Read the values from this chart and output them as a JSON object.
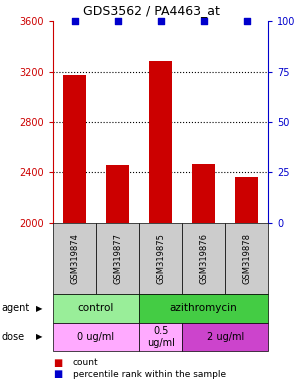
{
  "title": "GDS3562 / PA4463_at",
  "samples": [
    "GSM319874",
    "GSM319877",
    "GSM319875",
    "GSM319876",
    "GSM319878"
  ],
  "counts": [
    3170,
    2460,
    3280,
    2470,
    2360
  ],
  "percentiles": [
    100,
    100,
    100,
    100,
    100
  ],
  "ylim_left": [
    2000,
    3600
  ],
  "ylim_right": [
    0,
    100
  ],
  "yticks_left": [
    2000,
    2400,
    2800,
    3200,
    3600
  ],
  "yticks_right": [
    0,
    25,
    50,
    75,
    100
  ],
  "bar_color": "#cc0000",
  "dot_color": "#0000cc",
  "agent_groups": [
    {
      "label": "control",
      "start": 0,
      "end": 2,
      "color": "#99ee99"
    },
    {
      "label": "azithromycin",
      "start": 2,
      "end": 5,
      "color": "#44cc44"
    }
  ],
  "dose_groups": [
    {
      "label": "0 ug/ml",
      "start": 0,
      "end": 2,
      "color": "#ffaaff"
    },
    {
      "label": "0.5\nug/ml",
      "start": 2,
      "end": 3,
      "color": "#ffaaff"
    },
    {
      "label": "2 ug/ml",
      "start": 3,
      "end": 5,
      "color": "#cc44cc"
    }
  ],
  "legend_count_color": "#cc0000",
  "legend_dot_color": "#0000cc",
  "sample_bg_color": "#cccccc",
  "left_tick_color": "#cc0000",
  "right_tick_color": "#0000cc",
  "grid_dotted_ticks": [
    2400,
    2800,
    3200
  ]
}
